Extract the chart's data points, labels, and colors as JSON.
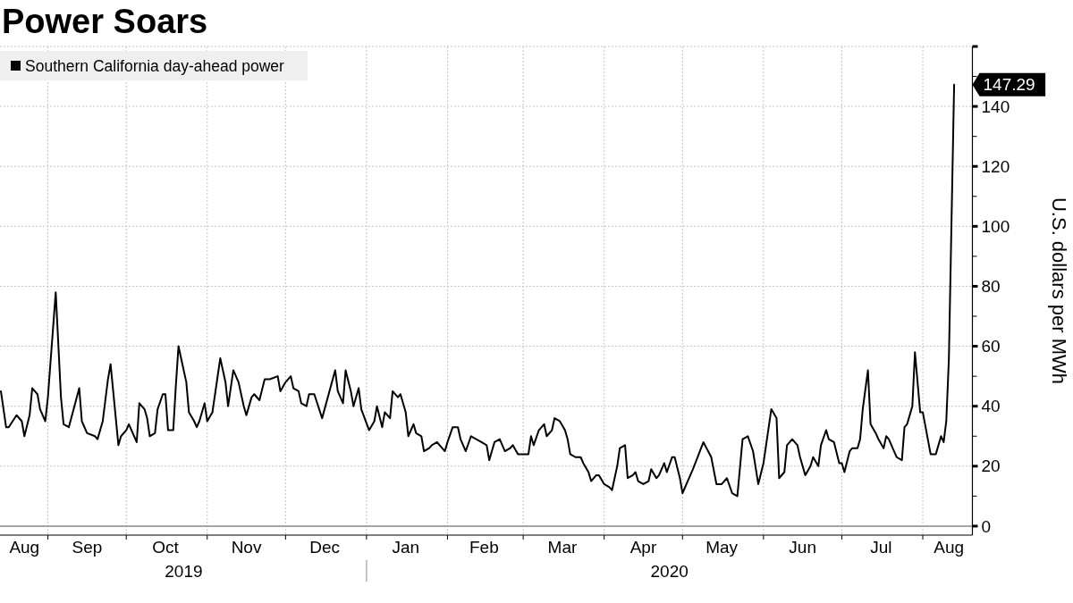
{
  "chart_data": {
    "type": "line",
    "title": "Power Soars",
    "ylabel": "U.S. dollars per MWh",
    "x": [
      "2019-08-14",
      "2019-08-16",
      "2019-08-17",
      "2019-08-20",
      "2019-08-22",
      "2019-08-23",
      "2019-08-25",
      "2019-08-26",
      "2019-08-28",
      "2019-08-29",
      "2019-08-31",
      "2019-09-01",
      "2019-09-04",
      "2019-09-06",
      "2019-09-07",
      "2019-09-09",
      "2019-09-13",
      "2019-09-14",
      "2019-09-16",
      "2019-09-19",
      "2019-09-20",
      "2019-09-22",
      "2019-09-24",
      "2019-09-25",
      "2019-09-28",
      "2019-09-29",
      "2019-10-01",
      "2019-10-02",
      "2019-10-04",
      "2019-10-05",
      "2019-10-06",
      "2019-10-08",
      "2019-10-09",
      "2019-10-10",
      "2019-10-12",
      "2019-10-13",
      "2019-10-15",
      "2019-10-16",
      "2019-10-17",
      "2019-10-19",
      "2019-10-20",
      "2019-10-21",
      "2019-10-23",
      "2019-10-24",
      "2019-10-25",
      "2019-10-27",
      "2019-10-28",
      "2019-10-29",
      "2019-10-31",
      "2019-11-01",
      "2019-11-03",
      "2019-11-06",
      "2019-11-08",
      "2019-11-09",
      "2019-11-11",
      "2019-11-13",
      "2019-11-15",
      "2019-11-16",
      "2019-11-18",
      "2019-11-19",
      "2019-11-21",
      "2019-11-23",
      "2019-11-25",
      "2019-11-28",
      "2019-11-29",
      "2019-12-01",
      "2019-12-03",
      "2019-12-04",
      "2019-12-06",
      "2019-12-07",
      "2019-12-09",
      "2019-12-10",
      "2019-12-12",
      "2019-12-15",
      "2019-12-20",
      "2019-12-21",
      "2019-12-23",
      "2019-12-24",
      "2019-12-26",
      "2019-12-27",
      "2019-12-29",
      "2019-12-30",
      "2020-01-02",
      "2020-01-04",
      "2020-01-05",
      "2020-01-07",
      "2020-01-08",
      "2020-01-10",
      "2020-01-11",
      "2020-01-13",
      "2020-01-14",
      "2020-01-16",
      "2020-01-17",
      "2020-01-19",
      "2020-01-20",
      "2020-01-22",
      "2020-01-23",
      "2020-01-25",
      "2020-01-26",
      "2020-01-28",
      "2020-01-29",
      "2020-01-31",
      "2020-02-01",
      "2020-02-03",
      "2020-02-05",
      "2020-02-06",
      "2020-02-08",
      "2020-02-10",
      "2020-02-12",
      "2020-02-14",
      "2020-02-16",
      "2020-02-17",
      "2020-02-19",
      "2020-02-21",
      "2020-02-23",
      "2020-02-25",
      "2020-02-26",
      "2020-02-28",
      "2020-03-03",
      "2020-03-04",
      "2020-03-05",
      "2020-03-07",
      "2020-03-09",
      "2020-03-10",
      "2020-03-12",
      "2020-03-13",
      "2020-03-15",
      "2020-03-17",
      "2020-03-18",
      "2020-03-19",
      "2020-03-21",
      "2020-03-23",
      "2020-03-24",
      "2020-03-26",
      "2020-03-27",
      "2020-03-29",
      "2020-03-30",
      "2020-04-01",
      "2020-04-03",
      "2020-04-04",
      "2020-04-06",
      "2020-04-07",
      "2020-04-09",
      "2020-04-10",
      "2020-04-12",
      "2020-04-13",
      "2020-04-14",
      "2020-04-16",
      "2020-04-18",
      "2020-04-19",
      "2020-04-21",
      "2020-04-22",
      "2020-04-24",
      "2020-04-25",
      "2020-04-27",
      "2020-04-28",
      "2020-04-30",
      "2020-05-01",
      "2020-05-05",
      "2020-05-09",
      "2020-05-12",
      "2020-05-14",
      "2020-05-16",
      "2020-05-18",
      "2020-05-20",
      "2020-05-22",
      "2020-05-24",
      "2020-05-26",
      "2020-05-28",
      "2020-05-30",
      "2020-06-01",
      "2020-06-03",
      "2020-06-04",
      "2020-06-06",
      "2020-06-07",
      "2020-06-09",
      "2020-06-10",
      "2020-06-12",
      "2020-06-14",
      "2020-06-15",
      "2020-06-17",
      "2020-06-19",
      "2020-06-20",
      "2020-06-22",
      "2020-06-23",
      "2020-06-25",
      "2020-06-26",
      "2020-06-28",
      "2020-06-30",
      "2020-07-01",
      "2020-07-02",
      "2020-07-04",
      "2020-07-05",
      "2020-07-07",
      "2020-07-08",
      "2020-07-09",
      "2020-07-11",
      "2020-07-12",
      "2020-07-14",
      "2020-07-15",
      "2020-07-17",
      "2020-07-18",
      "2020-07-19",
      "2020-07-21",
      "2020-07-22",
      "2020-07-24",
      "2020-07-25",
      "2020-07-26",
      "2020-07-28",
      "2020-07-29",
      "2020-07-31",
      "2020-08-01",
      "2020-08-04",
      "2020-08-06",
      "2020-08-08",
      "2020-08-09",
      "2020-08-10",
      "2020-08-11",
      "2020-08-13"
    ],
    "series": [
      {
        "name": "Southern California day-ahead power",
        "color": "#000000",
        "values": [
          45,
          33,
          33,
          37,
          35,
          30,
          37,
          46,
          44,
          39,
          35,
          43,
          78,
          43,
          34,
          33,
          46,
          35,
          31,
          30,
          29,
          35,
          49,
          54,
          27,
          30,
          32,
          34,
          30,
          28,
          41,
          39,
          36,
          30,
          31,
          39,
          44,
          44,
          32,
          32,
          47,
          60,
          52,
          48,
          38,
          35,
          33,
          35,
          41,
          35,
          38,
          56,
          48,
          40,
          52,
          48,
          40,
          37,
          43,
          44,
          42,
          49,
          49,
          50,
          45,
          48,
          50,
          46,
          45,
          41,
          40,
          44,
          44,
          36,
          52,
          45,
          41,
          52,
          45,
          40,
          46,
          39,
          32,
          35,
          40,
          33,
          38,
          36,
          45,
          43,
          44,
          38,
          30,
          34,
          31,
          30,
          25,
          26,
          27,
          28,
          27,
          25,
          28,
          33,
          33,
          29,
          25,
          30,
          29,
          28,
          27,
          22,
          28,
          29,
          25,
          26,
          27,
          24,
          24,
          30,
          27,
          32,
          34,
          30,
          32,
          36,
          35,
          32,
          29,
          24,
          23,
          23,
          21,
          18,
          15,
          17,
          17,
          14,
          13,
          12,
          20,
          26,
          27,
          16,
          17,
          18,
          15,
          14,
          15,
          19,
          16,
          17,
          21,
          18,
          23,
          23,
          16,
          11,
          19,
          28,
          23,
          14,
          14,
          16,
          11,
          10,
          29,
          30,
          25,
          14,
          21,
          33,
          39,
          36,
          16,
          18,
          27,
          29,
          27,
          23,
          17,
          20,
          23,
          20,
          27,
          32,
          29,
          28,
          21,
          21,
          18,
          25,
          26,
          26,
          29,
          39,
          52,
          34,
          31,
          29,
          26,
          30,
          29,
          25,
          23,
          22,
          33,
          34,
          40,
          58,
          38,
          38,
          24,
          24,
          30,
          28,
          35,
          56,
          147.29
        ]
      }
    ],
    "xlim": [
      "2019-08-14",
      "2020-08-20"
    ],
    "xticks": [
      {
        "value": "2019-08-23",
        "label": "Aug"
      },
      {
        "value": "2019-09-01",
        "label": null
      },
      {
        "value": "2019-09-16",
        "label": "Sep"
      },
      {
        "value": "2019-10-01",
        "label": null
      },
      {
        "value": "2019-10-16",
        "label": "Oct"
      },
      {
        "value": "2019-11-01",
        "label": null
      },
      {
        "value": "2019-11-16",
        "label": "Nov"
      },
      {
        "value": "2019-12-01",
        "label": null
      },
      {
        "value": "2019-12-16",
        "label": "Dec"
      },
      {
        "value": "2020-01-01",
        "label": null
      },
      {
        "value": "2020-01-16",
        "label": "Jan"
      },
      {
        "value": "2020-02-01",
        "label": null
      },
      {
        "value": "2020-02-15",
        "label": "Feb"
      },
      {
        "value": "2020-03-01",
        "label": null
      },
      {
        "value": "2020-03-16",
        "label": "Mar"
      },
      {
        "value": "2020-04-01",
        "label": null
      },
      {
        "value": "2020-04-16",
        "label": "Apr"
      },
      {
        "value": "2020-05-01",
        "label": null
      },
      {
        "value": "2020-05-16",
        "label": "May"
      },
      {
        "value": "2020-06-01",
        "label": null
      },
      {
        "value": "2020-06-16",
        "label": "Jun"
      },
      {
        "value": "2020-07-01",
        "label": null
      },
      {
        "value": "2020-07-16",
        "label": "Jul"
      },
      {
        "value": "2020-08-01",
        "label": null
      },
      {
        "value": "2020-08-11",
        "label": "Aug"
      }
    ],
    "x2lim": [
      "2019-08-14",
      "2020-08-20"
    ],
    "x2ticks": [
      {
        "value": "2019-10-23",
        "label": "2019"
      },
      {
        "value": "2020-01-01",
        "label": null
      },
      {
        "value": "2020-04-26",
        "label": "2020"
      }
    ],
    "ylim": [
      -3,
      160
    ],
    "yticks": [
      0,
      {
        "value": 10,
        "label": null
      },
      20,
      {
        "value": 30,
        "label": null
      },
      40,
      {
        "value": 50,
        "label": null
      },
      60,
      {
        "value": 70,
        "label": null
      },
      80,
      {
        "value": 90,
        "label": null
      },
      100,
      {
        "value": 110,
        "label": null
      },
      120,
      {
        "value": 130,
        "label": null
      },
      140,
      {
        "value": 150,
        "label": null
      },
      {
        "value": 160,
        "label": null
      }
    ],
    "grid": true,
    "legend": "top left",
    "ref_lines": [
      {
        "axis": "y",
        "value": 0,
        "color": "#8c8c8c"
      }
    ],
    "annotations": [
      {
        "text": "147.29",
        "x": "2020-08-13",
        "y": 147.29
      }
    ]
  }
}
